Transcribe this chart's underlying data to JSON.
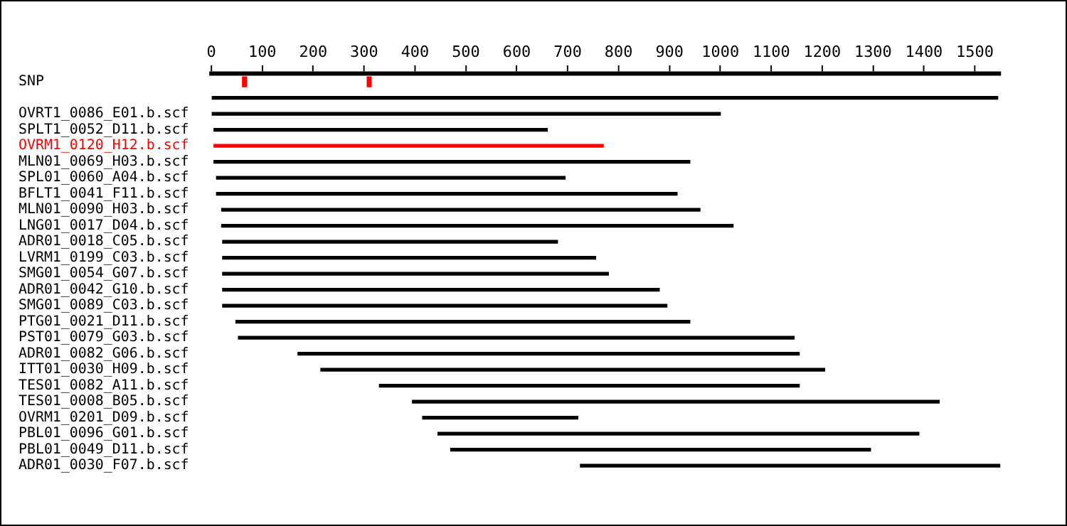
{
  "chart_data": {
    "type": "bar",
    "orientation": "horizontal",
    "categories": [
      "SNP",
      null,
      "OVRT1_0086_E01.b.scf",
      "SPLT1_0052_D11.b.scf",
      "OVRM1_0120_H12.b.scf",
      "MLN01_0069_H03.b.scf",
      "SPL01_0060_A04.b.scf",
      "BFLT1_0041_F11.b.scf",
      "MLN01_0090_H03.b.scf",
      "LNG01_0017_D04.b.scf",
      "ADR01_0018_C05.b.scf",
      "LVRM1_0199_C03.b.scf",
      "SMG01_0054_G07.b.scf",
      "ADR01_0042_G10.b.scf",
      "SMG01_0089_C03.b.scf",
      "PTG01_0021_D11.b.scf",
      "PST01_0079_G03.b.scf",
      "ADR01_0082_G06.b.scf",
      "ITT01_0030_H09.b.scf",
      "TES01_0082_A11.b.scf",
      "TES01_0008_B05.b.scf",
      "OVRM1_0201_D09.b.scf",
      "PBL01_0096_G01.b.scf",
      "PBL01_0049_D11.b.scf",
      "ADR01_0030_F07.b.scf"
    ],
    "xlim": [
      0,
      1550
    ],
    "xticks": [
      0,
      100,
      200,
      300,
      400,
      500,
      600,
      700,
      800,
      900,
      1000,
      1100,
      1200,
      1300,
      1400,
      1500
    ],
    "grid": false,
    "legend": false,
    "series": [
      {
        "values": [
          null,
          1545,
          1000,
          655,
          765,
          935,
          685,
          905,
          940,
          1005,
          658,
          733,
          758,
          858,
          873,
          892,
          1092,
          985,
          990,
          825,
          1035,
          305,
          945,
          825,
          825
        ],
        "base": [
          null,
          0,
          0,
          5,
          5,
          5,
          10,
          10,
          20,
          20,
          22,
          22,
          22,
          22,
          22,
          48,
          53,
          170,
          215,
          330,
          395,
          415,
          445,
          470,
          725
        ],
        "colors": [
          "#000000",
          "#000000",
          "#000000",
          "#000000",
          "#ff0000",
          "#000000",
          "#000000",
          "#000000",
          "#000000",
          "#000000",
          "#000000",
          "#000000",
          "#000000",
          "#000000",
          "#000000",
          "#000000",
          "#000000",
          "#000000",
          "#000000",
          "#000000",
          "#000000",
          "#000000",
          "#000000",
          "#000000",
          "#000000"
        ]
      },
      {
        "values": [
          8,
          null,
          null,
          null,
          null,
          null,
          null,
          null,
          null,
          null,
          null,
          null,
          null,
          null,
          null,
          null,
          null,
          null,
          null,
          null,
          null,
          null,
          null,
          null,
          null
        ],
        "base": [
          61,
          null,
          null,
          null,
          null,
          null,
          null,
          null,
          null,
          null,
          null,
          null,
          null,
          null,
          null,
          null,
          null,
          null,
          null,
          null,
          null,
          null,
          null,
          null,
          null
        ],
        "color": "#ff0000"
      },
      {
        "values": [
          8,
          null,
          null,
          null,
          null,
          null,
          null,
          null,
          null,
          null,
          null,
          null,
          null,
          null,
          null,
          null,
          null,
          null,
          null,
          null,
          null,
          null,
          null,
          null,
          null
        ],
        "base": [
          306,
          null,
          null,
          null,
          null,
          null,
          null,
          null,
          null,
          null,
          null,
          null,
          null,
          null,
          null,
          null,
          null,
          null,
          null,
          null,
          null,
          null,
          null,
          null,
          null
        ],
        "color": "#ff0000"
      }
    ]
  }
}
